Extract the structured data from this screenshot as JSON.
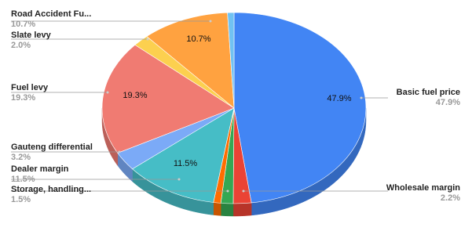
{
  "chart_data": {
    "type": "pie3d",
    "categories": [
      "Basic fuel price",
      "Wholesale margin",
      "Storage, handling...",
      null,
      "Dealer margin",
      "Gauteng differential",
      "Fuel levy",
      "Slate levy",
      "Road Accident Fu...",
      null
    ],
    "values": [
      47.9,
      2.2,
      1.5,
      0.9,
      11.5,
      3.2,
      19.3,
      2.0,
      10.7,
      0.8
    ],
    "value_labels": [
      "47.9%",
      "2.2%",
      "1.5%",
      null,
      "11.5%",
      "3.2%",
      "19.3%",
      "2.0%",
      "10.7%",
      null
    ],
    "colors": [
      "#4285f4",
      "#ea4335",
      "#34a853",
      "#ff6d01",
      "#46bdc6",
      "#7baaf7",
      "#f07b72",
      "#fcd04f",
      "#ffa240",
      "#71c2f2"
    ]
  }
}
